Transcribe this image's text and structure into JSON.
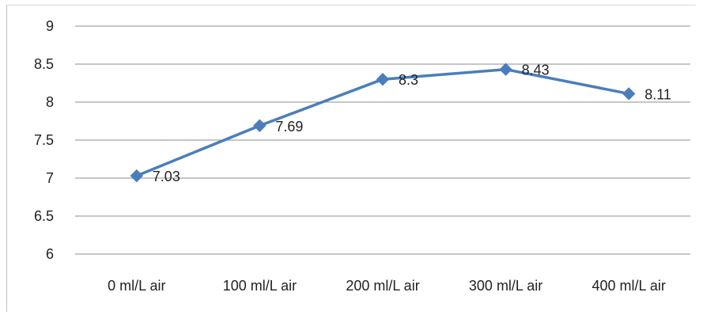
{
  "chart_data": {
    "type": "line",
    "title": "",
    "xlabel": "",
    "ylabel": "",
    "categories": [
      "0 ml/L air",
      "100 ml/L air",
      "200 ml/L air",
      "300 ml/L air",
      "400 ml/L air"
    ],
    "series": [
      {
        "values": [
          7.03,
          7.69,
          8.3,
          8.43,
          8.11
        ],
        "data_labels": [
          "7.03",
          "7.69",
          "8.3",
          "8.43",
          "8.11"
        ],
        "color": "#4a7ebb",
        "marker": "diamond"
      }
    ],
    "ylim": [
      6,
      9
    ],
    "y_ticks": [
      6,
      6.5,
      7,
      7.5,
      8,
      8.5,
      9
    ],
    "y_tick_labels": [
      "6",
      "6.5",
      "7",
      "7.5",
      "8",
      "8.5",
      "9"
    ],
    "grid": true,
    "gridline_color": "#8c8c8c",
    "legend": "none"
  }
}
